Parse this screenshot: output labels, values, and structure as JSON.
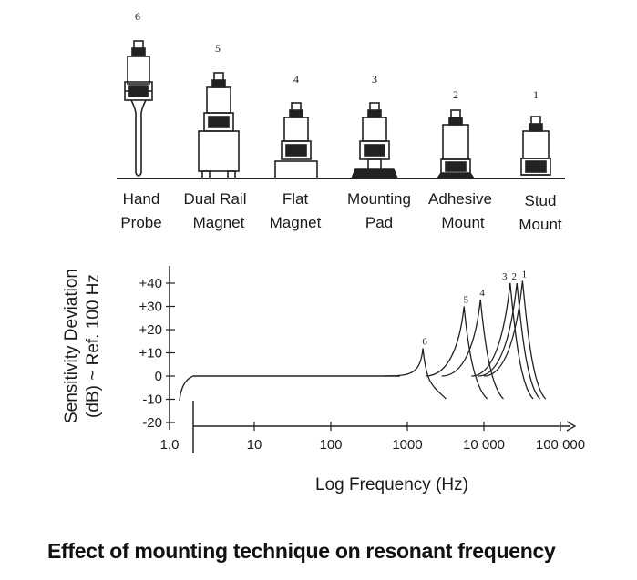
{
  "mounts": [
    {
      "number": "6",
      "label_line1": "Hand",
      "label_line2": "Probe"
    },
    {
      "number": "5",
      "label_line1": "Dual Rail",
      "label_line2": "Magnet"
    },
    {
      "number": "4",
      "label_line1": "Flat",
      "label_line2": "Magnet"
    },
    {
      "number": "3",
      "label_line1": "Mounting",
      "label_line2": "Pad"
    },
    {
      "number": "2",
      "label_line1": "Adhesive",
      "label_line2": "Mount"
    },
    {
      "number": "1",
      "label_line1": "Stud",
      "label_line2": "Mount"
    }
  ],
  "chart_data": {
    "type": "line",
    "title": "",
    "xlabel": "Log Frequency (Hz)",
    "ylabel_line1": "Sensitivity Deviation",
    "ylabel_line2": "(dB) ~ Ref. 100 Hz",
    "x_scale": "log",
    "x_ticks": [
      {
        "value": 1,
        "label": "1.0"
      },
      {
        "value": 10,
        "label": "10"
      },
      {
        "value": 100,
        "label": "100"
      },
      {
        "value": 1000,
        "label": "1000"
      },
      {
        "value": 10000,
        "label": "10 000"
      },
      {
        "value": 100000,
        "label": "100 000"
      }
    ],
    "y_ticks": [
      {
        "value": 40,
        "label": "+40"
      },
      {
        "value": 30,
        "label": "+30"
      },
      {
        "value": 20,
        "label": "+20"
      },
      {
        "value": 10,
        "label": "+10"
      },
      {
        "value": 0,
        "label": "0"
      },
      {
        "value": -10,
        "label": "-10"
      },
      {
        "value": -20,
        "label": "-20"
      }
    ],
    "xlim": [
      1,
      100000
    ],
    "ylim": [
      -20,
      40
    ],
    "series": [
      {
        "name": "6",
        "resonance_hz": 1600,
        "peak_db": 12
      },
      {
        "name": "5",
        "resonance_hz": 5500,
        "peak_db": 30
      },
      {
        "name": "4",
        "resonance_hz": 9000,
        "peak_db": 33
      },
      {
        "name": "3",
        "resonance_hz": 22000,
        "peak_db": 40
      },
      {
        "name": "2",
        "resonance_hz": 27000,
        "peak_db": 40
      },
      {
        "name": "1",
        "resonance_hz": 32000,
        "peak_db": 41
      }
    ]
  },
  "caption": "Effect of mounting technique on resonant frequency"
}
